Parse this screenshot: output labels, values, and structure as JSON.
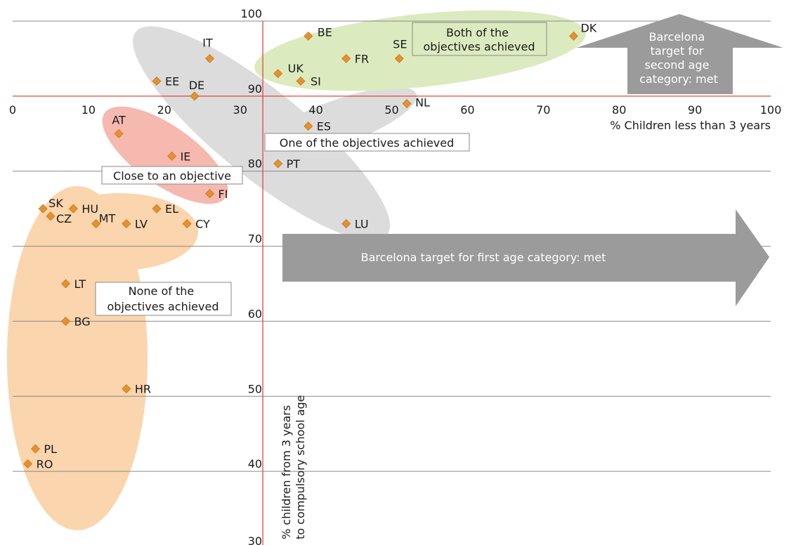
{
  "chart_data": {
    "type": "scatter",
    "xlabel": "% Children less than 3 years",
    "ylabel": "% children from 3 years to compulsory school age",
    "xlim": [
      0,
      100
    ],
    "ylim": [
      30,
      100
    ],
    "x_ticks": [
      0,
      10,
      20,
      30,
      40,
      50,
      60,
      70,
      80,
      90,
      100
    ],
    "y_ticks": [
      30,
      40,
      50,
      60,
      70,
      80,
      90,
      100
    ],
    "grid": "horizontal",
    "reference_lines": {
      "x": 33,
      "y": 90
    },
    "marker_color": "#e8902a",
    "points": [
      {
        "label": "DK",
        "x": 74,
        "y": 98
      },
      {
        "label": "BE",
        "x": 39,
        "y": 98
      },
      {
        "label": "SE",
        "x": 51,
        "y": 95
      },
      {
        "label": "FR",
        "x": 44,
        "y": 95
      },
      {
        "label": "IT",
        "x": 26,
        "y": 95
      },
      {
        "label": "UK",
        "x": 35,
        "y": 93
      },
      {
        "label": "SI",
        "x": 38,
        "y": 92
      },
      {
        "label": "EE",
        "x": 19,
        "y": 92
      },
      {
        "label": "DE",
        "x": 24,
        "y": 90
      },
      {
        "label": "NL",
        "x": 52,
        "y": 89
      },
      {
        "label": "ES",
        "x": 39,
        "y": 86
      },
      {
        "label": "AT",
        "x": 14,
        "y": 85
      },
      {
        "label": "IE",
        "x": 21,
        "y": 82
      },
      {
        "label": "PT",
        "x": 35,
        "y": 81
      },
      {
        "label": "FI",
        "x": 26,
        "y": 77
      },
      {
        "label": "SK",
        "x": 4,
        "y": 75
      },
      {
        "label": "HU",
        "x": 8,
        "y": 75
      },
      {
        "label": "EL",
        "x": 19,
        "y": 75
      },
      {
        "label": "CZ",
        "x": 5,
        "y": 74
      },
      {
        "label": "MT",
        "x": 11,
        "y": 73
      },
      {
        "label": "LV",
        "x": 15,
        "y": 73
      },
      {
        "label": "CY",
        "x": 23,
        "y": 73
      },
      {
        "label": "LU",
        "x": 44,
        "y": 73
      },
      {
        "label": "LT",
        "x": 7,
        "y": 65
      },
      {
        "label": "BG",
        "x": 7,
        "y": 60
      },
      {
        "label": "HR",
        "x": 15,
        "y": 51
      },
      {
        "label": "PL",
        "x": 3,
        "y": 43
      },
      {
        "label": "RO",
        "x": 2,
        "y": 41
      }
    ],
    "group_colors": {
      "both": "#dcebbf",
      "one": "#dcdcdc",
      "close": "#f5b9b0",
      "none": "#fad5ad",
      "arrow": "#9b9b9b"
    },
    "annotations": {
      "both": [
        "Both of the",
        "objectives achieved"
      ],
      "one": "One of the objectives achieved",
      "close": "Close to an objective",
      "none": [
        "None of the",
        "objectives achieved"
      ],
      "arrow_first": "Barcelona target for first age category: met",
      "arrow_second": [
        "Barcelona",
        "target for",
        "second age",
        "category: met"
      ]
    }
  }
}
